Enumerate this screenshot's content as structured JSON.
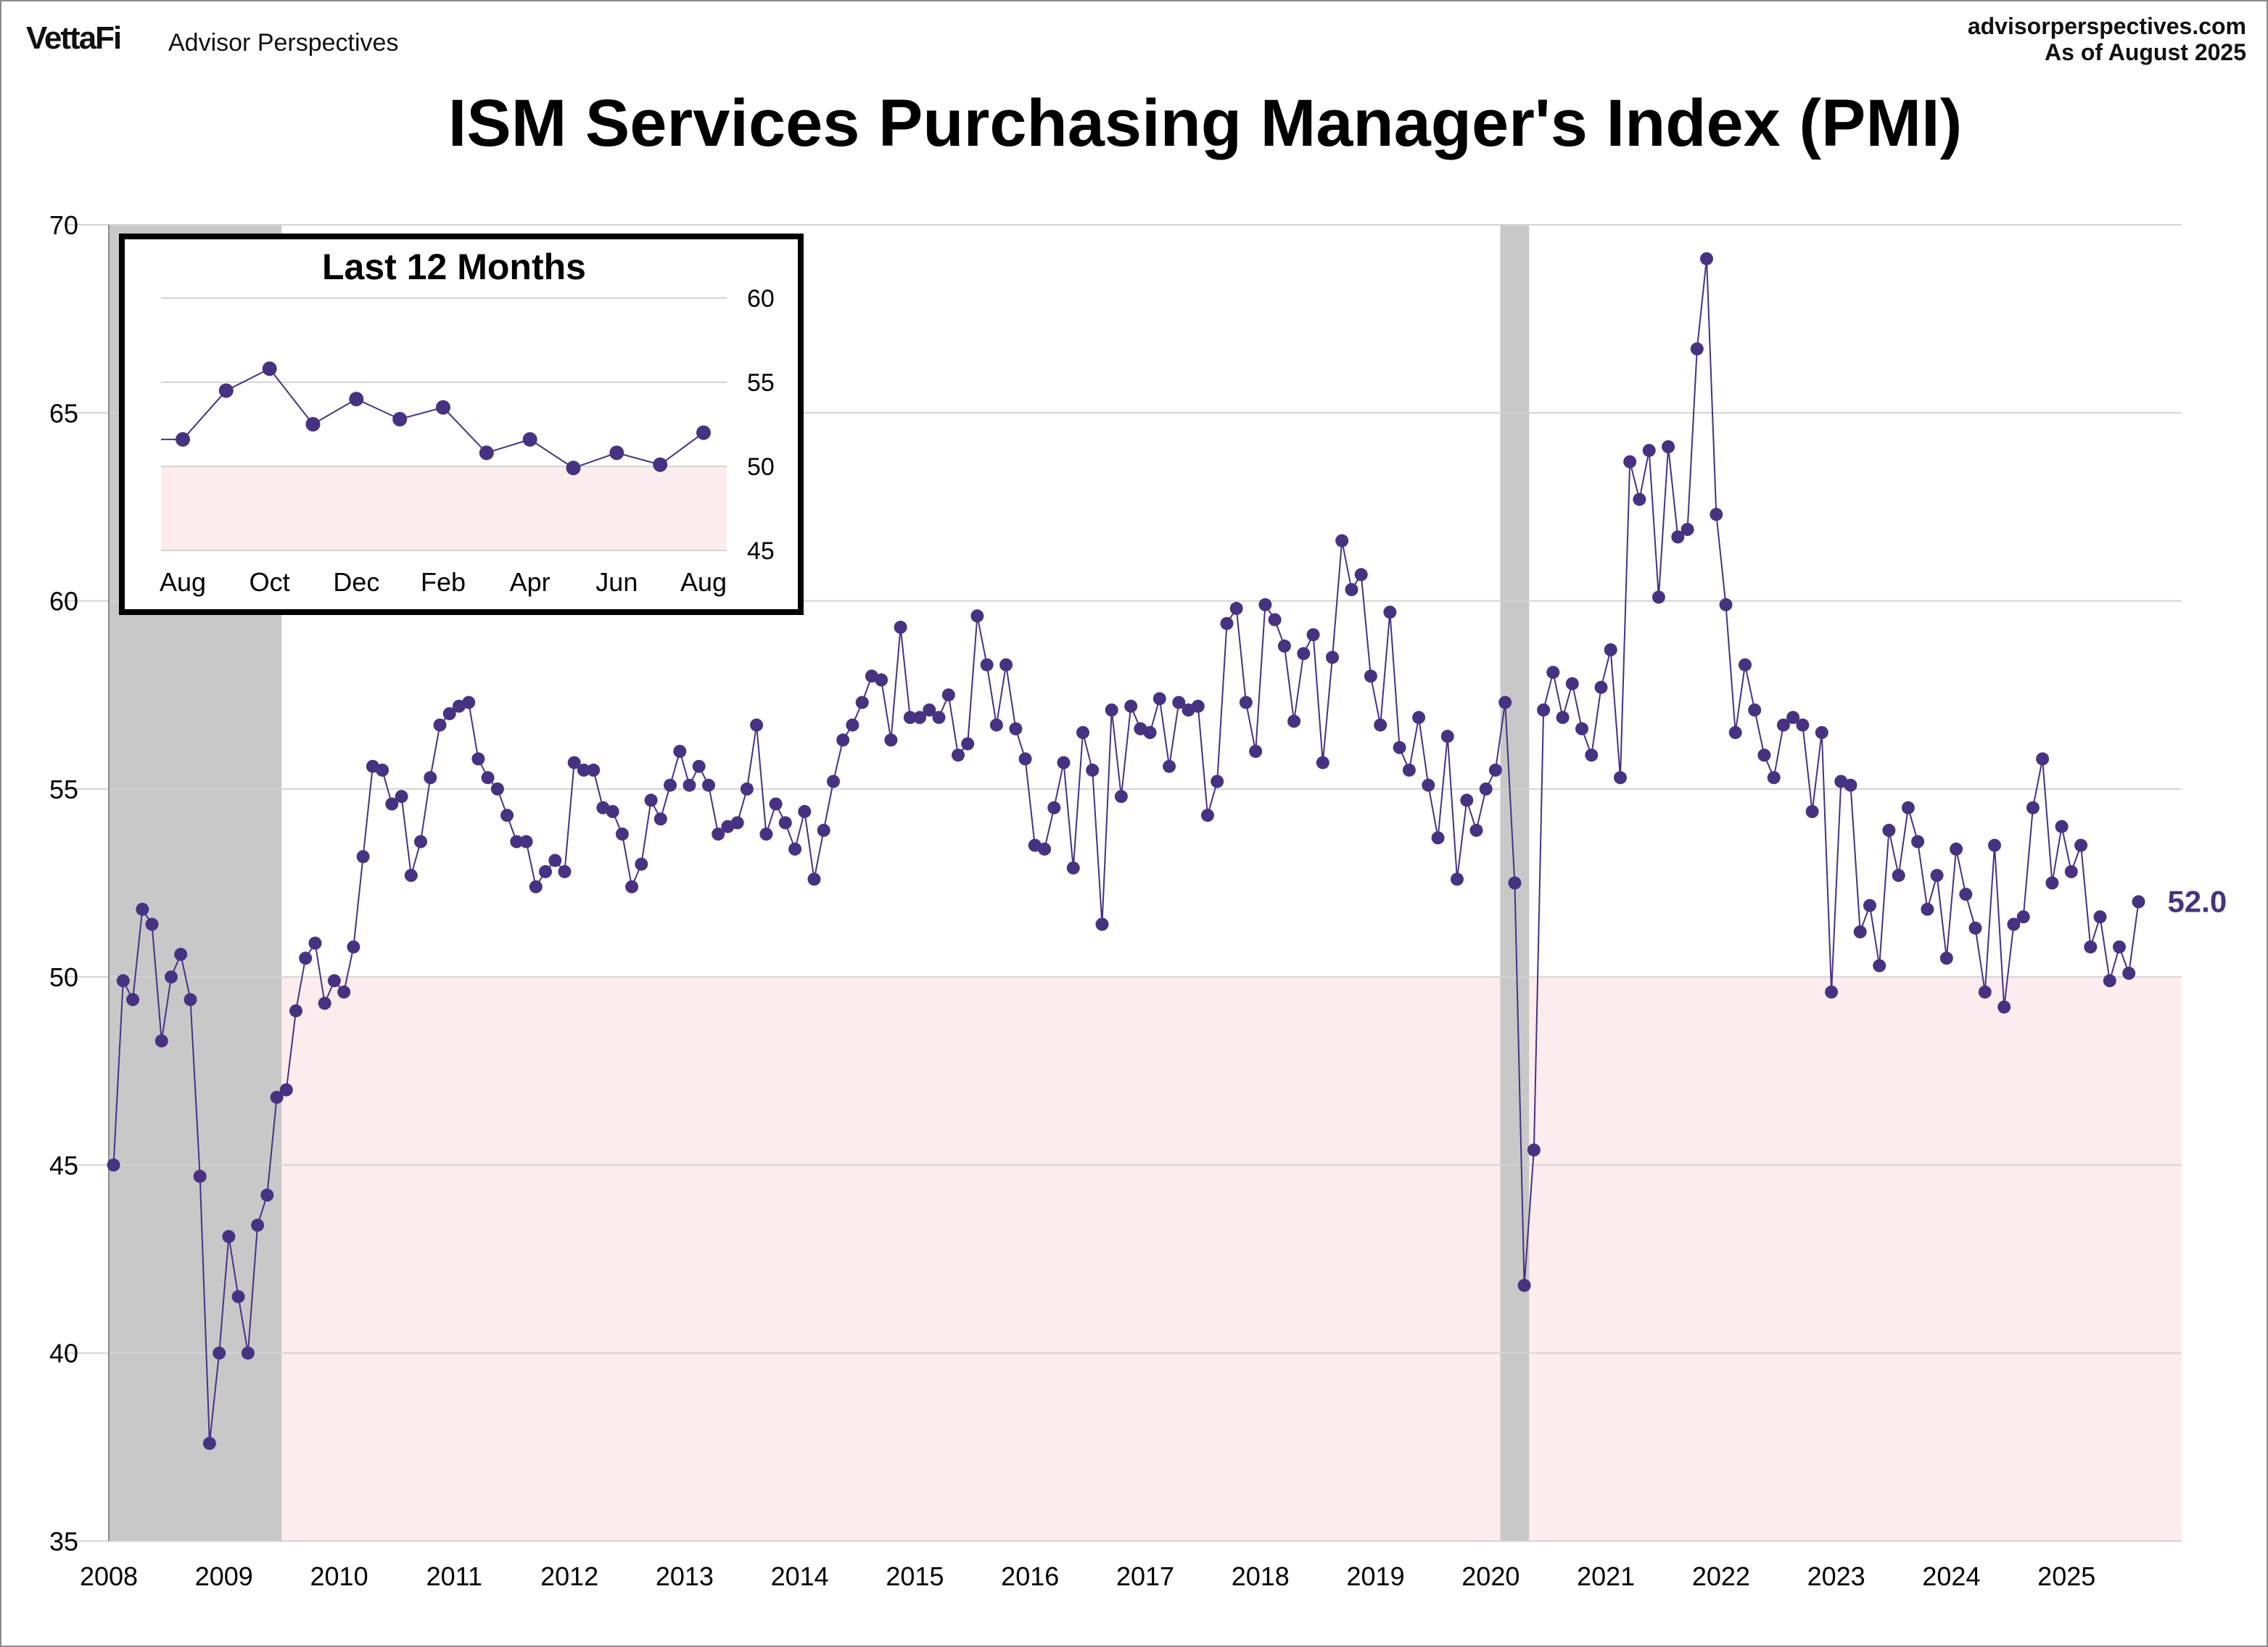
{
  "header": {
    "logo_text": "VettaFi",
    "brand_name": "Advisor Perspectives",
    "url": "advisorperspectives.com",
    "as_of": "As of August 2025"
  },
  "colors": {
    "series": "#473282",
    "recession": "#c8c8c8",
    "contraction_zone": "#fdeced",
    "grid": "#d4d4d4"
  },
  "chart_data": [
    {
      "type": "line",
      "title": "ISM Services Purchasing Manager's Index (PMI)",
      "xlabel": "",
      "ylabel": "",
      "ylim": [
        35,
        70
      ],
      "xlim": [
        "2008-01",
        "2025-12"
      ],
      "y_ticks": [
        35,
        40,
        45,
        50,
        55,
        60,
        65,
        70
      ],
      "x_ticks": [
        "2008",
        "2009",
        "2010",
        "2011",
        "2012",
        "2013",
        "2014",
        "2015",
        "2016",
        "2017",
        "2018",
        "2019",
        "2020",
        "2021",
        "2022",
        "2023",
        "2024",
        "2025"
      ],
      "grid": true,
      "contraction_threshold": 50,
      "recessions": [
        {
          "start": "2008-01",
          "end": "2009-06"
        },
        {
          "start": "2020-02",
          "end": "2020-04"
        }
      ],
      "start_month": "2008-01",
      "end_month": "2025-08",
      "last_value_label": "52.0",
      "values": [
        45.0,
        49.9,
        49.4,
        51.8,
        51.4,
        48.3,
        50.0,
        50.6,
        49.4,
        44.7,
        37.6,
        40.0,
        43.1,
        41.5,
        40.0,
        43.4,
        44.2,
        46.8,
        47.0,
        49.1,
        50.5,
        50.9,
        49.3,
        49.9,
        49.6,
        50.8,
        53.2,
        55.6,
        55.5,
        54.6,
        54.8,
        52.7,
        53.6,
        55.3,
        56.7,
        57.0,
        57.2,
        57.3,
        55.8,
        55.3,
        55.0,
        54.3,
        53.6,
        53.6,
        52.4,
        52.8,
        53.1,
        52.8,
        55.7,
        55.5,
        55.5,
        54.5,
        54.4,
        53.8,
        52.4,
        53.0,
        54.7,
        54.2,
        55.1,
        56.0,
        55.1,
        55.6,
        55.1,
        53.8,
        54.0,
        54.1,
        55.0,
        56.7,
        53.8,
        54.6,
        54.1,
        53.4,
        54.4,
        52.6,
        53.9,
        55.2,
        56.3,
        56.7,
        57.3,
        58.0,
        57.9,
        56.3,
        59.3,
        56.9,
        56.9,
        57.1,
        56.9,
        57.5,
        55.9,
        56.2,
        59.6,
        58.3,
        56.7,
        58.3,
        56.6,
        55.8,
        53.5,
        53.4,
        54.5,
        55.7,
        52.9,
        56.5,
        55.5,
        51.4,
        57.1,
        54.8,
        57.2,
        56.6,
        56.5,
        57.4,
        55.6,
        57.3,
        57.1,
        57.2,
        54.3,
        55.2,
        59.4,
        59.8,
        57.3,
        56.0,
        59.9,
        59.5,
        58.8,
        56.8,
        58.6,
        59.1,
        55.7,
        58.5,
        61.6,
        60.3,
        60.7,
        58.0,
        56.7,
        59.7,
        56.1,
        55.5,
        56.9,
        55.1,
        53.7,
        56.4,
        52.6,
        54.7,
        53.9,
        55.0,
        55.5,
        57.3,
        52.5,
        41.8,
        45.4,
        57.1,
        58.1,
        56.9,
        57.8,
        56.6,
        55.9,
        57.7,
        58.7,
        55.3,
        63.7,
        62.7,
        64.0,
        60.1,
        64.1,
        61.7,
        61.9,
        66.7,
        69.1,
        62.3,
        59.9,
        56.5,
        58.3,
        57.1,
        55.9,
        55.3,
        56.7,
        56.9,
        56.7,
        54.4,
        56.5,
        49.6,
        55.2,
        55.1,
        51.2,
        51.9,
        50.3,
        53.9,
        52.7,
        54.5,
        53.6,
        51.8,
        52.7,
        50.5,
        53.4,
        52.2,
        51.3,
        49.6,
        53.5,
        49.2,
        51.4,
        51.6,
        54.5,
        55.8,
        52.5,
        54.0,
        52.8,
        53.5,
        50.8,
        51.6,
        49.9,
        50.8,
        50.1,
        52.0
      ]
    },
    {
      "type": "line",
      "title": "Last 12 Months",
      "xlabel": "",
      "ylabel": "",
      "ylim": [
        45,
        60
      ],
      "y_ticks": [
        45,
        50,
        55,
        60
      ],
      "x_ticks": [
        "Aug",
        "Oct",
        "Dec",
        "Feb",
        "Apr",
        "Jun",
        "Aug"
      ],
      "grid": true,
      "contraction_threshold": 50,
      "values": [
        51.6,
        54.5,
        55.8,
        52.5,
        54.0,
        52.8,
        53.5,
        50.8,
        51.6,
        49.9,
        50.8,
        50.1,
        52.0
      ]
    }
  ]
}
